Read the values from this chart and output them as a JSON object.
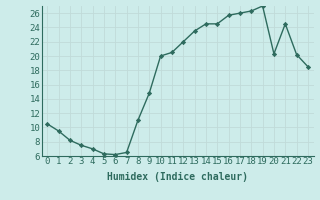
{
  "x": [
    0,
    1,
    2,
    3,
    4,
    5,
    6,
    7,
    8,
    9,
    10,
    11,
    12,
    13,
    14,
    15,
    16,
    17,
    18,
    19,
    20,
    21,
    22,
    23
  ],
  "y": [
    10.5,
    9.5,
    8.2,
    7.5,
    7.0,
    6.3,
    6.2,
    6.5,
    11.0,
    14.8,
    20.0,
    20.5,
    22.0,
    23.5,
    24.5,
    24.5,
    25.7,
    26.0,
    26.3,
    27.0,
    20.3,
    24.5,
    20.2,
    18.5
  ],
  "line_color": "#2e6b5e",
  "marker": "D",
  "marker_size": 2.2,
  "linewidth": 1.0,
  "xlabel": "Humidex (Indice chaleur)",
  "xlabel_fontsize": 7,
  "bg_color": "#cdecea",
  "grid_color": "#c0dbd9",
  "tick_label_fontsize": 6.5,
  "ylim": [
    6,
    27
  ],
  "yticks": [
    6,
    8,
    10,
    12,
    14,
    16,
    18,
    20,
    22,
    24,
    26
  ],
  "xlim": [
    -0.5,
    23.5
  ],
  "xticks": [
    0,
    1,
    2,
    3,
    4,
    5,
    6,
    7,
    8,
    9,
    10,
    11,
    12,
    13,
    14,
    15,
    16,
    17,
    18,
    19,
    20,
    21,
    22,
    23
  ]
}
